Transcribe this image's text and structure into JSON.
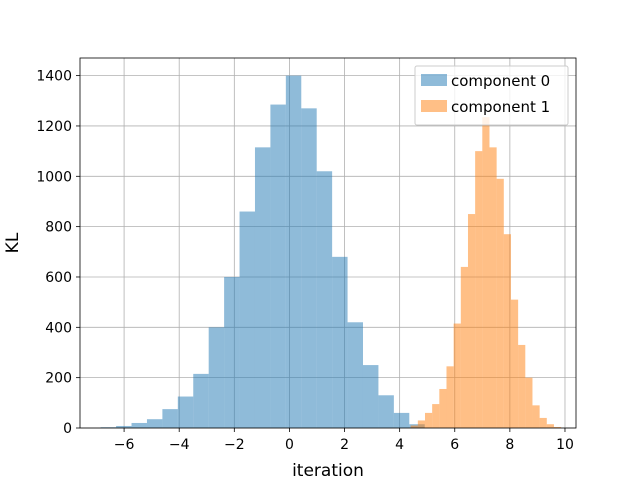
{
  "chart_data": {
    "type": "histogram",
    "title": "",
    "xlabel": "iteration",
    "ylabel": "KL",
    "xlim": [
      -7.6,
      10.4
    ],
    "ylim": [
      0,
      1470
    ],
    "x_ticks": [
      -6,
      -4,
      -2,
      0,
      2,
      4,
      6,
      8,
      10
    ],
    "x_tick_labels": [
      "−6",
      "−4",
      "−2",
      "0",
      "2",
      "4",
      "6",
      "8",
      "10"
    ],
    "y_ticks": [
      0,
      200,
      400,
      600,
      800,
      1000,
      1200,
      1400
    ],
    "y_tick_labels": [
      "0",
      "200",
      "400",
      "600",
      "800",
      "1000",
      "1200",
      "1400"
    ],
    "grid": true,
    "legend_position": "top-right",
    "series": [
      {
        "name": "component 0",
        "color": "#1f77b4",
        "opacity": 0.5,
        "bin_start": -6.85,
        "bin_width": 0.56,
        "counts": [
          3,
          8,
          20,
          35,
          75,
          125,
          215,
          400,
          600,
          860,
          1115,
          1285,
          1400,
          1270,
          1020,
          680,
          420,
          250,
          130,
          60,
          15
        ]
      },
      {
        "name": "component 1",
        "color": "#ff7f0e",
        "opacity": 0.5,
        "bin_start": 4.4,
        "bin_width": 0.26,
        "counts": [
          10,
          30,
          60,
          95,
          155,
          245,
          415,
          640,
          850,
          1100,
          1235,
          1115,
          990,
          770,
          510,
          330,
          200,
          90,
          40,
          15,
          4
        ]
      }
    ]
  }
}
